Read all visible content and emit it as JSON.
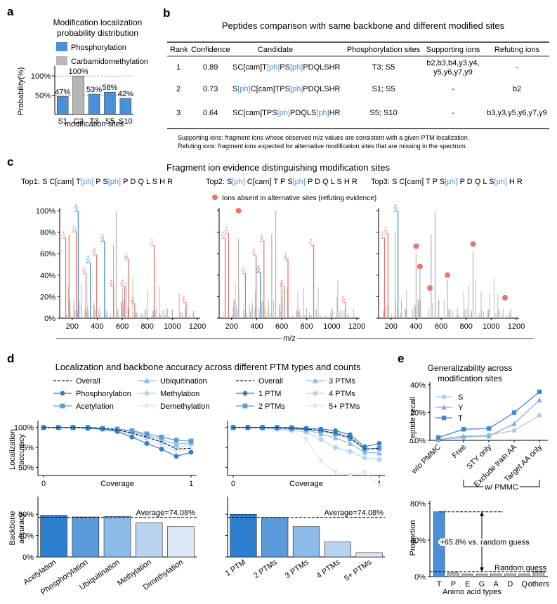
{
  "colors": {
    "blue": "#4a90d9",
    "gray": "#b7b7b7",
    "red": "#e8766d",
    "noise": "#b8b8b8",
    "s1": "#2f7fcf",
    "s2": "#5b9bdc",
    "s3": "#8dbbe8",
    "s4": "#b8d4ef",
    "s5": "#dbe8f6",
    "sty_S": "#a9cbee",
    "sty_Y": "#7fb0e4",
    "sty_T": "#3f86d3"
  },
  "panels": {
    "a": "a",
    "b": "b",
    "c": "c",
    "d": "d",
    "e": "e"
  },
  "chart_data": [
    {
      "id": "a",
      "type": "bar",
      "title_line1": "Modification localization",
      "title_line2": "probability distribution",
      "legend": [
        "Phosphorylation",
        "Carbamidomethylation"
      ],
      "categories": [
        "S1",
        "C2",
        "T3",
        "S5",
        "S10"
      ],
      "values": [
        47,
        100,
        53,
        58,
        42
      ],
      "value_labels": [
        "47%",
        "100%",
        "53%",
        "58%",
        "42%"
      ],
      "series_of_bar": [
        "Phosphorylation",
        "Carbamidomethylation",
        "Phosphorylation",
        "Phosphorylation",
        "Phosphorylation"
      ],
      "ylabel": "Probability(%)",
      "xlabel": "modification sites",
      "ylim": [
        0,
        115
      ],
      "yticks": [
        "50%",
        "100%"
      ],
      "grid": "dashed"
    },
    {
      "id": "b",
      "type": "table",
      "title": "Peptides comparison with same backbone and different modified sites",
      "columns": [
        "Rank",
        "Confidence",
        "Candidate",
        "Phosphorylation sites",
        "Supporting ions",
        "Refuting ions"
      ],
      "rows": [
        {
          "rank": "1",
          "confidence": "0.89",
          "candidate": [
            {
              "t": "SC[cam]T"
            },
            {
              "t": "[ph]",
              "mod": true
            },
            {
              "t": "PS"
            },
            {
              "t": "[ph]",
              "mod": true
            },
            {
              "t": "PDQLSHR"
            }
          ],
          "sites": "T3; S5",
          "supporting_1": "b2,b3,b4,y3,y4,",
          "supporting_2": "y5,y6,y7,y9",
          "refuting": "-"
        },
        {
          "rank": "2",
          "confidence": "0.73",
          "candidate": [
            {
              "t": "S"
            },
            {
              "t": "[ph]",
              "mod": true
            },
            {
              "t": "C[cam]TPS"
            },
            {
              "t": "[ph]",
              "mod": true
            },
            {
              "t": "PDQLSHR"
            }
          ],
          "sites": "S1; S5",
          "supporting_1": "-",
          "supporting_2": "",
          "refuting": "b2"
        },
        {
          "rank": "3",
          "confidence": "0.64",
          "candidate": [
            {
              "t": "SC[cam]TPS"
            },
            {
              "t": "[ph]",
              "mod": true
            },
            {
              "t": "PDQLS"
            },
            {
              "t": "[ph]",
              "mod": true
            },
            {
              "t": "HR"
            }
          ],
          "sites": "S5; S10",
          "supporting_1": "-",
          "supporting_2": "",
          "refuting": "b3,y3,y5,y6,y7,y9"
        }
      ],
      "footnote_1": "Supporting ions: fragment ions whose observed m/z values are consistent with a given PTM localization.",
      "footnote_2": "Refuting ions: fragment ions expected for alternative modification sites that are missing in the spectrum."
    },
    {
      "id": "c",
      "type": "bar",
      "title": "Fragment ion evidence distinguishing modification sites",
      "legend": "Ions absent in alternative sites (refuting evidence)",
      "xlabel": "m/z",
      "xlim": [
        100,
        1200
      ],
      "xticks": [
        200,
        400,
        600,
        800,
        1000,
        1200
      ],
      "yticks": [
        "0%",
        "20%",
        "40%",
        "60%",
        "80%",
        "100%"
      ],
      "spectra": [
        {
          "heading": [
            {
              "t": "Top1: S C[cam] T"
            },
            {
              "t": "[ph]",
              "mod": true
            },
            {
              "t": " P S"
            },
            {
              "t": "[ph]",
              "mod": true
            },
            {
              "t": " P D Q L S H R"
            }
          ],
          "peaks": [
            {
              "mz": 148,
              "i": 75,
              "c": "red",
              "label": "y1+"
            },
            {
              "mz": 175,
              "i": 77,
              "c": "red",
              "label": ""
            },
            {
              "mz": 232,
              "i": 81,
              "c": "red",
              "label": "b2+"
            },
            {
              "mz": 248,
              "i": 100,
              "c": "blue",
              "label": "b2+"
            },
            {
              "mz": 310,
              "i": 42,
              "c": "red",
              "label": "y2+"
            },
            {
              "mz": 345,
              "i": 52,
              "c": "blue",
              "label": "b3+"
            },
            {
              "mz": 395,
              "i": 59,
              "c": "red",
              "label": "y3+"
            },
            {
              "mz": 458,
              "i": 72,
              "c": "blue",
              "label": "b3+"
            },
            {
              "mz": 530,
              "i": 68,
              "c": "gray"
            },
            {
              "mz": 552,
              "i": 100,
              "c": "gray"
            },
            {
              "mz": 530,
              "i": 30,
              "c": "red",
              "label": "y4+"
            },
            {
              "mz": 620,
              "i": 30,
              "c": "red",
              "label": "y5+"
            },
            {
              "mz": 650,
              "i": 55,
              "c": "red",
              "label": "y6+"
            },
            {
              "mz": 700,
              "i": 14,
              "c": "red",
              "label": "y5+"
            },
            {
              "mz": 855,
              "i": 68,
              "c": "red",
              "label": "y7+"
            },
            {
              "mz": 1110,
              "i": 15,
              "c": "red",
              "label": "y9+"
            }
          ]
        },
        {
          "heading": [
            {
              "t": "Top2: S"
            },
            {
              "t": "[ph]",
              "mod": true
            },
            {
              "t": " C[cam] T P S"
            },
            {
              "t": "[ph]",
              "mod": true
            },
            {
              "t": " P D Q L S H R"
            }
          ],
          "peaks": [
            {
              "mz": 148,
              "i": 75,
              "c": "red",
              "label": "y1+"
            },
            {
              "mz": 175,
              "i": 79,
              "c": "red",
              "label": "y1+"
            },
            {
              "mz": 255,
              "i": 74,
              "c": "gray"
            },
            {
              "mz": 310,
              "i": 42,
              "c": "red",
              "label": "y2+"
            },
            {
              "mz": 395,
              "i": 59,
              "c": "red",
              "label": "y3+"
            },
            {
              "mz": 430,
              "i": 43,
              "c": "blue",
              "label": "b3+"
            },
            {
              "mz": 458,
              "i": 72,
              "c": "red",
              "label": "b3+"
            },
            {
              "mz": 520,
              "i": 78,
              "c": "gray"
            },
            {
              "mz": 552,
              "i": 100,
              "c": "gray"
            },
            {
              "mz": 620,
              "i": 30,
              "c": "red",
              "label": "y5+"
            },
            {
              "mz": 650,
              "i": 55,
              "c": "red",
              "label": "y6+"
            },
            {
              "mz": 855,
              "i": 68,
              "c": "red",
              "label": "y7+"
            },
            {
              "mz": 1110,
              "i": 15,
              "c": "red",
              "label": "y9+"
            }
          ],
          "dots": [
            {
              "mz": 255,
              "i": 100
            }
          ]
        },
        {
          "heading": [
            {
              "t": "Top3: S C[cam] T P S"
            },
            {
              "t": "[ph]",
              "mod": true
            },
            {
              "t": " P D Q L S"
            },
            {
              "t": "[ph]",
              "mod": true
            },
            {
              "t": " H R"
            }
          ],
          "peaks": [
            {
              "mz": 148,
              "i": 75,
              "c": "red",
              "label": "y1+"
            },
            {
              "mz": 175,
              "i": 79,
              "c": "red",
              "label": "y1+"
            },
            {
              "mz": 232,
              "i": 81,
              "c": "gray"
            },
            {
              "mz": 255,
              "i": 100,
              "c": "blue",
              "label": "b2+"
            },
            {
              "mz": 400,
              "i": 60,
              "c": "gray"
            },
            {
              "mz": 430,
              "i": 45,
              "c": "gray"
            },
            {
              "mz": 520,
              "i": 78,
              "c": "gray"
            },
            {
              "mz": 552,
              "i": 100,
              "c": "gray"
            },
            {
              "mz": 650,
              "i": 36,
              "c": "gray"
            },
            {
              "mz": 855,
              "i": 62,
              "c": "gray"
            }
          ],
          "dots": [
            {
              "mz": 400,
              "i": 67
            },
            {
              "mz": 430,
              "i": 48
            },
            {
              "mz": 510,
              "i": 28
            },
            {
              "mz": 650,
              "i": 40
            },
            {
              "mz": 855,
              "i": 69
            },
            {
              "mz": 1110,
              "i": 19
            }
          ]
        }
      ]
    },
    {
      "id": "d",
      "type": "line",
      "title": "Localization and backbone accuracy across different PTM types and counts",
      "legend_left": [
        "Overall",
        "Phosphorylation",
        "Acetylation",
        "Ubiquitination",
        "Methylation",
        "Demethylation"
      ],
      "legend_right": [
        "Overall",
        "1 PTM",
        "2 PTMs",
        "3 PTMs",
        "4 PTMs",
        "5+ PTMs"
      ],
      "ylabel_top_1": "Localization",
      "ylabel_top_2": "accuracy",
      "xlabel": "Coverage",
      "xticks": [
        "0",
        "1"
      ],
      "yticks": [
        "50%",
        "75%",
        "100%"
      ],
      "x": [
        0,
        0.1,
        0.2,
        0.3,
        0.4,
        0.5,
        0.6,
        0.7,
        0.8,
        0.9,
        1.0
      ],
      "left_series": [
        {
          "name": "Overall",
          "values": [
            100,
            100,
            100,
            100,
            99,
            97,
            93,
            88,
            82,
            73,
            74
          ]
        },
        {
          "name": "Phosphorylation",
          "values": [
            100,
            100,
            100,
            99,
            98,
            95,
            88,
            80,
            73,
            64,
            69
          ]
        },
        {
          "name": "Acetylation",
          "values": [
            100,
            100,
            100,
            100,
            99,
            98,
            96,
            92,
            88,
            84,
            83
          ]
        },
        {
          "name": "Ubiquitination",
          "values": [
            100,
            100,
            100,
            100,
            99,
            98,
            95,
            90,
            85,
            79,
            81
          ]
        },
        {
          "name": "Methylation",
          "values": [
            100,
            100,
            100,
            99,
            98,
            96,
            92,
            87,
            82,
            75,
            79
          ]
        },
        {
          "name": "Demethylation",
          "values": [
            100,
            100,
            100,
            99,
            97,
            94,
            89,
            84,
            78,
            70,
            72
          ]
        }
      ],
      "right_series": [
        {
          "name": "Overall",
          "values": [
            100,
            100,
            100,
            100,
            99,
            98,
            96,
            93,
            88,
            73,
            74
          ]
        },
        {
          "name": "1 PTM",
          "values": [
            100,
            100,
            100,
            100,
            100,
            99,
            98,
            96,
            91,
            76,
            80
          ]
        },
        {
          "name": "2 PTMs",
          "values": [
            100,
            100,
            100,
            100,
            99,
            98,
            96,
            92,
            86,
            73,
            74
          ]
        },
        {
          "name": "3 PTMs",
          "values": [
            100,
            100,
            100,
            99,
            98,
            97,
            92,
            87,
            80,
            69,
            68
          ]
        },
        {
          "name": "4 PTMs",
          "values": [
            100,
            100,
            99,
            98,
            97,
            94,
            85,
            75,
            70,
            62,
            60
          ]
        },
        {
          "name": "5+ PTMs",
          "values": [
            100,
            100,
            99,
            97,
            95,
            85,
            58,
            44,
            40,
            44,
            27
          ]
        }
      ],
      "backbone": {
        "ylabel_1": "Backbone",
        "ylabel_2": "accuracy",
        "yticks": [
          "0%",
          "40%",
          "80%"
        ],
        "average_label": "Average=74.08%",
        "average": 74.08,
        "left_categories": [
          "Acetylation",
          "Phosphorylation",
          "Ubiquitination",
          "Methylation",
          "Dimethylation"
        ],
        "left_values": [
          78,
          75,
          76,
          64,
          57
        ],
        "right_categories": [
          "1 PTM",
          "2 PTMs",
          "3 PTMs",
          "4 PTMs",
          "5+ PTMs"
        ],
        "right_values": [
          80,
          74,
          57,
          28,
          8
        ]
      }
    },
    {
      "id": "e",
      "type": "line",
      "title_1": "Generalizability across",
      "title_2": "modification sites",
      "ylabel_top": "Peptide recall",
      "yticks_top": [
        "0%",
        "20%",
        "40%"
      ],
      "categories": [
        "w/o PMMC",
        "Free",
        "STY only",
        "Exclude train AA",
        "Target AA only"
      ],
      "bracket_label": "w/ PMMC",
      "series": [
        {
          "name": "S",
          "values": [
            0.5,
            2,
            4,
            7,
            18
          ]
        },
        {
          "name": "Y",
          "values": [
            0.5,
            3,
            3,
            12,
            29
          ]
        },
        {
          "name": "T",
          "values": [
            2,
            8,
            8.5,
            20,
            35
          ]
        }
      ],
      "bottom": {
        "ylabel": "Proportion",
        "yticks": [
          "0%",
          "40%",
          "80%"
        ],
        "categories": [
          "T",
          "P",
          "E",
          "G",
          "A",
          "D",
          "Q",
          "others"
        ],
        "values": [
          71,
          4,
          3,
          3,
          3,
          3,
          3,
          6
        ],
        "random_guess": 5.5,
        "random_label": "Random guess",
        "annotation": "+65.8% vs. random guess",
        "xlabel": "Animo acid types"
      }
    }
  ]
}
